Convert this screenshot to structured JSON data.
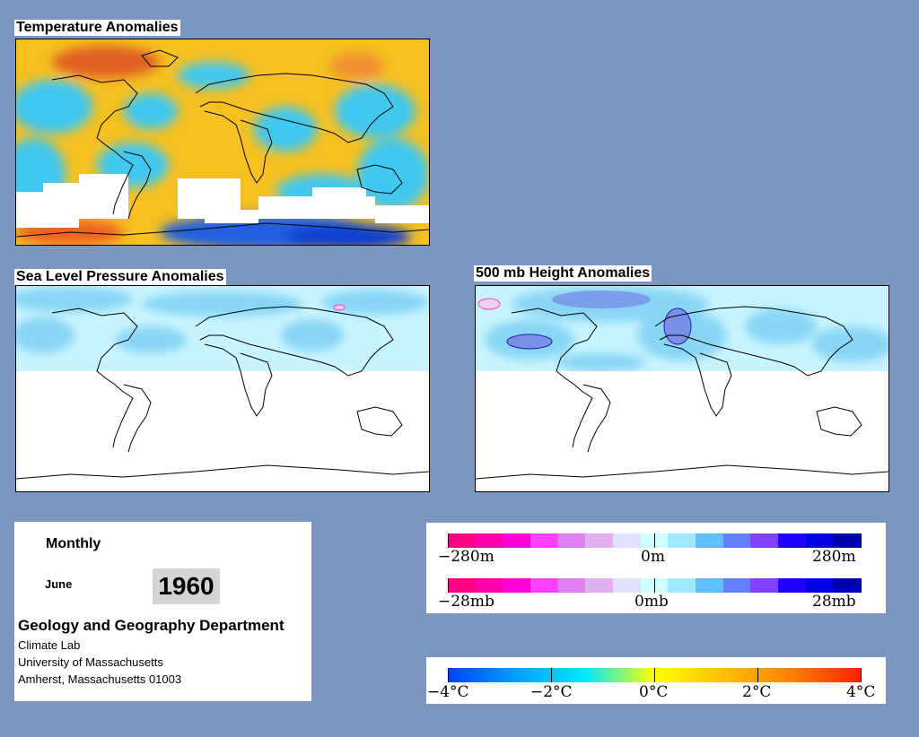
{
  "maps": {
    "temperature": {
      "title": "Temperature Anomalies"
    },
    "pressure": {
      "title": "Sea Level Pressure Anomalies"
    },
    "height": {
      "title": "500 mb Height Anomalies"
    }
  },
  "info": {
    "period": "Monthly",
    "month": "June",
    "year": "1960",
    "department": "Geology and Geography Department",
    "lab": "Climate Lab",
    "university": "University of Massachusetts",
    "address": "Amherst, Massachusetts 01003"
  },
  "legends": {
    "height": {
      "labels": [
        "−280m",
        "0m",
        "280m"
      ],
      "colors": [
        "#ff0080",
        "#ff00aa",
        "#ff00d4",
        "#ff40ff",
        "#e080f0",
        "#e0b0f0",
        "#e0e0ff",
        "#d0ffff",
        "#a0e8ff",
        "#60c0ff",
        "#6080ff",
        "#8040ff",
        "#2000ff",
        "#0000e0",
        "#0000b0"
      ]
    },
    "pressure": {
      "labels": [
        "−28mb",
        "0mb",
        "28mb"
      ],
      "colors": [
        "#ff0080",
        "#ff00aa",
        "#ff00d4",
        "#ff40ff",
        "#e080f0",
        "#e0b0f0",
        "#e0e0ff",
        "#d0ffff",
        "#a0e8ff",
        "#60c0ff",
        "#6080ff",
        "#8040ff",
        "#2000ff",
        "#0000e0",
        "#0000b0"
      ]
    },
    "temperature": {
      "labels": [
        "−4°C",
        "−2°C",
        "0°C",
        "2°C",
        "4°C"
      ],
      "gradient": [
        "#0040ff",
        "#00a0ff",
        "#00e8ff",
        "#ffff00",
        "#ffc000",
        "#ff8000",
        "#ff2000"
      ]
    }
  }
}
